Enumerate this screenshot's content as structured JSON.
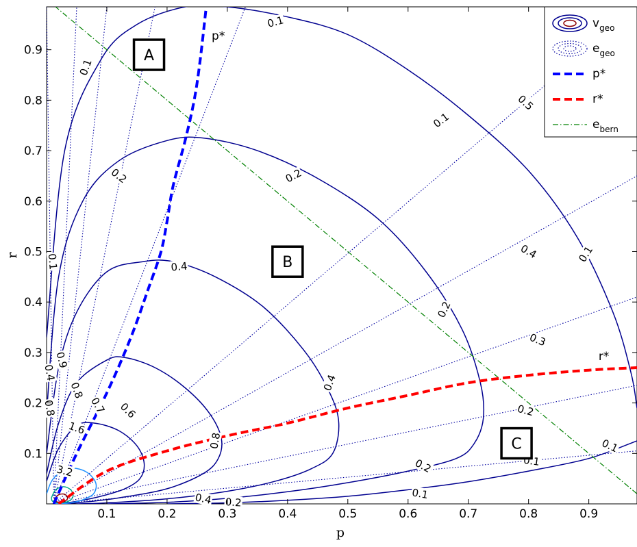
{
  "chart_data": {
    "type": "line",
    "title": "",
    "xlabel": "p",
    "ylabel": "r",
    "xlim": [
      0.0,
      0.98
    ],
    "ylim": [
      0.0,
      0.985
    ],
    "xticks": [
      0.1,
      0.2,
      0.3,
      0.4,
      0.5,
      0.6,
      0.7,
      0.8,
      0.9
    ],
    "yticks": [
      0.1,
      0.2,
      0.3,
      0.4,
      0.5,
      0.6,
      0.7,
      0.8,
      0.9
    ],
    "grid": false,
    "legend_position": "top-right",
    "legend": [
      {
        "label": "v",
        "sub": "geo",
        "style": "solid-ellipses"
      },
      {
        "label": "e",
        "sub": "geo",
        "style": "dotted-ellipses"
      },
      {
        "label": "p*",
        "sub": "",
        "style": "blue-dashed"
      },
      {
        "label": "r*",
        "sub": "",
        "style": "red-dashed"
      },
      {
        "label": "e",
        "sub": "bern",
        "style": "green-dashdot"
      }
    ],
    "colors": {
      "v_geo": "#00008f",
      "v_geo_inner": "#1e90ff",
      "v_geo_center": "#8b0000",
      "e_geo": "#0000a0",
      "p_star": "#0000ff",
      "r_star": "#ff0000",
      "e_bern": "#008000"
    },
    "series": [
      {
        "name": "v_geo contours",
        "contours": [
          {
            "level": "0.1",
            "points": [
              [
                0.0,
                0.33
              ],
              [
                0.03,
                0.7
              ],
              [
                0.09,
                0.88
              ],
              [
                0.15,
                0.95
              ],
              [
                0.23,
                0.985
              ],
              [
                0.3,
                0.985
              ],
              [
                0.4,
                0.965
              ],
              [
                0.5,
                0.93
              ],
              [
                0.6,
                0.86
              ],
              [
                0.7,
                0.77
              ],
              [
                0.8,
                0.66
              ],
              [
                0.88,
                0.53
              ],
              [
                0.94,
                0.38
              ],
              [
                0.97,
                0.26
              ],
              [
                0.98,
                0.19
              ]
            ]
          },
          {
            "level": "0.1",
            "points": [
              [
                0.98,
                0.125
              ],
              [
                0.9,
                0.09
              ],
              [
                0.8,
                0.065
              ],
              [
                0.7,
                0.044
              ],
              [
                0.6,
                0.028
              ],
              [
                0.5,
                0.015
              ],
              [
                0.4,
                0.007
              ],
              [
                0.3,
                0.002
              ],
              [
                0.2,
                0.0
              ]
            ]
          },
          {
            "level": "0.2",
            "points": [
              [
                0.0,
                0.18
              ],
              [
                0.02,
                0.45
              ],
              [
                0.06,
                0.6
              ],
              [
                0.12,
                0.68
              ],
              [
                0.2,
                0.72
              ],
              [
                0.26,
                0.725
              ],
              [
                0.35,
                0.7
              ],
              [
                0.45,
                0.645
              ],
              [
                0.55,
                0.565
              ],
              [
                0.63,
                0.46
              ],
              [
                0.69,
                0.345
              ],
              [
                0.72,
                0.24
              ],
              [
                0.725,
                0.17
              ],
              [
                0.71,
                0.12
              ],
              [
                0.68,
                0.09
              ],
              [
                0.6,
                0.065
              ],
              [
                0.5,
                0.042
              ],
              [
                0.4,
                0.024
              ],
              [
                0.3,
                0.011
              ],
              [
                0.2,
                0.003
              ],
              [
                0.1,
                0.0
              ]
            ]
          },
          {
            "level": "0.4",
            "points": [
              [
                0.0,
                0.1
              ],
              [
                0.02,
                0.27
              ],
              [
                0.05,
                0.38
              ],
              [
                0.1,
                0.46
              ],
              [
                0.16,
                0.48
              ],
              [
                0.21,
                0.48
              ],
              [
                0.28,
                0.45
              ],
              [
                0.36,
                0.39
              ],
              [
                0.43,
                0.3
              ],
              [
                0.47,
                0.22
              ],
              [
                0.485,
                0.16
              ],
              [
                0.475,
                0.1
              ],
              [
                0.44,
                0.07
              ],
              [
                0.38,
                0.045
              ],
              [
                0.3,
                0.025
              ],
              [
                0.2,
                0.01
              ],
              [
                0.1,
                0.002
              ],
              [
                0.05,
                0.0
              ]
            ]
          },
          {
            "level": "0.8",
            "points": [
              [
                0.0,
                0.06
              ],
              [
                0.02,
                0.16
              ],
              [
                0.05,
                0.24
              ],
              [
                0.1,
                0.285
              ],
              [
                0.13,
                0.29
              ],
              [
                0.18,
                0.27
              ],
              [
                0.23,
                0.23
              ],
              [
                0.27,
                0.18
              ],
              [
                0.29,
                0.13
              ],
              [
                0.285,
                0.09
              ],
              [
                0.26,
                0.06
              ],
              [
                0.2,
                0.03
              ],
              [
                0.12,
                0.012
              ],
              [
                0.05,
                0.002
              ],
              [
                0.02,
                0.0
              ]
            ]
          },
          {
            "level": "1.6",
            "points": [
              [
                0.0,
                0.045
              ],
              [
                0.02,
                0.11
              ],
              [
                0.05,
                0.155
              ],
              [
                0.08,
                0.16
              ],
              [
                0.12,
                0.145
              ],
              [
                0.15,
                0.115
              ],
              [
                0.162,
                0.08
              ],
              [
                0.155,
                0.05
              ],
              [
                0.13,
                0.03
              ],
              [
                0.09,
                0.015
              ],
              [
                0.05,
                0.005
              ],
              [
                0.02,
                0.0
              ]
            ]
          },
          {
            "level": "3.2",
            "points": [
              [
                0.0,
                0.02
              ],
              [
                0.01,
                0.048
              ],
              [
                0.03,
                0.068
              ],
              [
                0.05,
                0.07
              ],
              [
                0.07,
                0.06
              ],
              [
                0.082,
                0.04
              ],
              [
                0.078,
                0.02
              ],
              [
                0.06,
                0.008
              ],
              [
                0.04,
                0.002
              ],
              [
                0.015,
                0.0
              ]
            ]
          },
          {
            "level": "",
            "points": [
              [
                0.008,
                0.012
              ],
              [
                0.015,
                0.028
              ],
              [
                0.028,
                0.034
              ],
              [
                0.04,
                0.028
              ],
              [
                0.044,
                0.015
              ],
              [
                0.036,
                0.005
              ],
              [
                0.02,
                0.002
              ],
              [
                0.01,
                0.005
              ],
              [
                0.008,
                0.012
              ]
            ]
          },
          {
            "level": "",
            "points": [
              [
                0.013,
                0.009
              ],
              [
                0.02,
                0.018
              ],
              [
                0.03,
                0.019
              ],
              [
                0.035,
                0.011
              ],
              [
                0.028,
                0.004
              ],
              [
                0.017,
                0.004
              ],
              [
                0.013,
                0.009
              ]
            ]
          }
        ]
      },
      {
        "name": "e_geo rays",
        "rays": [
          {
            "level": "0.9",
            "end": [
              0.05,
              0.985
            ]
          },
          {
            "level": "",
            "end": [
              0.0,
              0.985
            ]
          },
          {
            "level": "0.8",
            "end": [
              0.1,
              0.985
            ]
          },
          {
            "level": "0.7",
            "end": [
              0.18,
              0.985
            ]
          },
          {
            "level": "0.6",
            "end": [
              0.33,
              0.985
            ]
          },
          {
            "level": "0.5",
            "end": [
              0.98,
              0.985
            ]
          },
          {
            "level": "0.4",
            "end": [
              0.98,
              0.65
            ]
          },
          {
            "level": "0.3",
            "end": [
              0.98,
              0.41
            ]
          },
          {
            "level": "0.2",
            "end": [
              0.98,
              0.235
            ]
          },
          {
            "level": "0.1",
            "end": [
              0.98,
              0.105
            ]
          }
        ]
      },
      {
        "name": "p*",
        "label": "p*",
        "x": [
          0.012,
          0.05,
          0.1,
          0.14,
          0.17,
          0.19,
          0.2,
          0.21,
          0.23,
          0.245,
          0.255,
          0.265
        ],
        "y": [
          0.0,
          0.1,
          0.22,
          0.33,
          0.43,
          0.5,
          0.56,
          0.63,
          0.72,
          0.8,
          0.88,
          0.985
        ]
      },
      {
        "name": "r*",
        "label": "r*",
        "x": [
          0.02,
          0.1,
          0.2,
          0.3,
          0.4,
          0.5,
          0.6,
          0.7,
          0.8,
          0.9,
          0.98
        ],
        "y": [
          0.0,
          0.065,
          0.105,
          0.135,
          0.16,
          0.19,
          0.215,
          0.24,
          0.255,
          0.265,
          0.27
        ]
      },
      {
        "name": "e_bern",
        "x": [
          0.0,
          0.98
        ],
        "y": [
          1.0,
          0.02
        ]
      }
    ],
    "contour_labels": [
      {
        "text": "0.1",
        "x": 0.38,
        "y": 0.955,
        "rot": 15
      },
      {
        "text": "0.1",
        "x": 0.065,
        "y": 0.865,
        "rot": 70
      },
      {
        "text": "0.1",
        "x": 0.655,
        "y": 0.76,
        "rot": 37
      },
      {
        "text": "0.1",
        "x": 0.895,
        "y": 0.495,
        "rot": 58
      },
      {
        "text": "0.1",
        "x": 0.935,
        "y": 0.115,
        "rot": -25
      },
      {
        "text": "0.1",
        "x": 0.62,
        "y": 0.02,
        "rot": -10
      },
      {
        "text": "0.1",
        "x": 0.01,
        "y": 0.48,
        "rot": -85
      },
      {
        "text": "0.2",
        "x": 0.12,
        "y": 0.65,
        "rot": -38
      },
      {
        "text": "0.2",
        "x": 0.41,
        "y": 0.65,
        "rot": 28
      },
      {
        "text": "0.2",
        "x": 0.66,
        "y": 0.385,
        "rot": 65
      },
      {
        "text": "0.2",
        "x": 0.625,
        "y": 0.075,
        "rot": -28
      },
      {
        "text": "0.2",
        "x": 0.31,
        "y": 0.003,
        "rot": -4
      },
      {
        "text": "0.4",
        "x": 0.22,
        "y": 0.47,
        "rot": 5
      },
      {
        "text": "0.4",
        "x": 0.47,
        "y": 0.24,
        "rot": 70
      },
      {
        "text": "0.4",
        "x": 0.26,
        "y": 0.01,
        "rot": -12
      },
      {
        "text": "0.4",
        "x": 0.005,
        "y": 0.26,
        "rot": -80
      },
      {
        "text": "0.8",
        "x": 0.28,
        "y": 0.125,
        "rot": 80
      },
      {
        "text": "0.8",
        "x": 0.005,
        "y": 0.19,
        "rot": -80
      },
      {
        "text": "1.6",
        "x": 0.05,
        "y": 0.15,
        "rot": -20
      },
      {
        "text": "3.2",
        "x": 0.03,
        "y": 0.065,
        "rot": -15
      },
      {
        "text": "0.9",
        "x": 0.025,
        "y": 0.285,
        "rot": -75
      },
      {
        "text": "0.8",
        "x": 0.05,
        "y": 0.225,
        "rot": -70
      },
      {
        "text": "0.7",
        "x": 0.085,
        "y": 0.195,
        "rot": -60
      },
      {
        "text": "0.6",
        "x": 0.135,
        "y": 0.185,
        "rot": -45
      },
      {
        "text": "0.5",
        "x": 0.795,
        "y": 0.795,
        "rot": -42
      },
      {
        "text": "0.4",
        "x": 0.8,
        "y": 0.5,
        "rot": -30
      },
      {
        "text": "0.3",
        "x": 0.815,
        "y": 0.325,
        "rot": -22
      },
      {
        "text": "0.2",
        "x": 0.795,
        "y": 0.185,
        "rot": -15
      },
      {
        "text": "0.1",
        "x": 0.805,
        "y": 0.085,
        "rot": -8
      }
    ],
    "annotations": [
      {
        "text": "p*",
        "x": 0.285,
        "y": 0.92,
        "type": "curve-label"
      },
      {
        "text": "r*",
        "x": 0.925,
        "y": 0.285,
        "type": "curve-label"
      },
      {
        "text": "A",
        "x": 0.17,
        "y": 0.89,
        "type": "region"
      },
      {
        "text": "B",
        "x": 0.4,
        "y": 0.48,
        "type": "region"
      },
      {
        "text": "C",
        "x": 0.78,
        "y": 0.12,
        "type": "region"
      }
    ]
  }
}
